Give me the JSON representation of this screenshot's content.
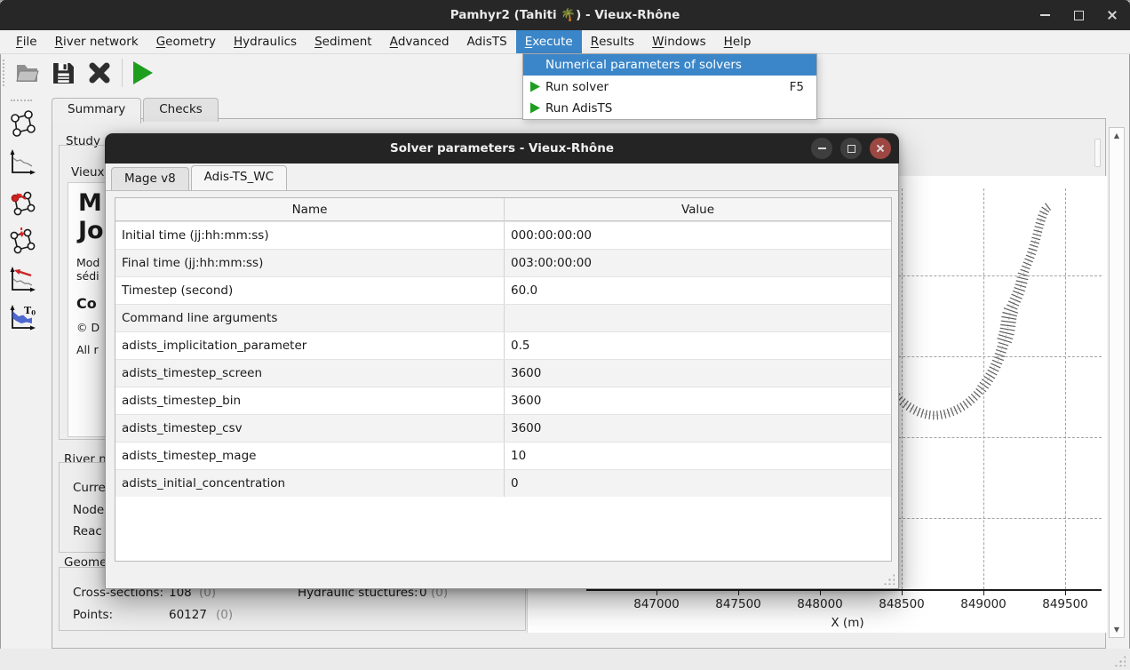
{
  "titlebar": {
    "title": "Pamhyr2 (Tahiti 🌴) - Vieux-Rhône",
    "controls": [
      "minimize-icon",
      "maximize-icon",
      "close-icon"
    ]
  },
  "menubar": {
    "items": [
      {
        "label": "File",
        "u": 0
      },
      {
        "label": "River network",
        "u": 0
      },
      {
        "label": "Geometry",
        "u": 0
      },
      {
        "label": "Hydraulics",
        "u": 0
      },
      {
        "label": "Sediment",
        "u": 0
      },
      {
        "label": "Advanced",
        "u": 0
      },
      {
        "label": "AdisTS",
        "u": null
      },
      {
        "label": "Execute",
        "u": 0,
        "active": true
      },
      {
        "label": "Results",
        "u": 0
      },
      {
        "label": "Windows",
        "u": 0
      },
      {
        "label": "Help",
        "u": 0
      }
    ]
  },
  "toolbar": {
    "icons": [
      "open-folder-icon",
      "save-icon",
      "close-icon",
      "run-icon"
    ]
  },
  "sidebar": {
    "icons": [
      "river-network-icon",
      "longitudinal-profile-icon",
      "boundary-condition-icon",
      "lateral-contribution-icon",
      "initial-condition-icon",
      "t0-initial-state-icon"
    ]
  },
  "tabs": {
    "items": [
      {
        "label": "Summary",
        "active": true
      },
      {
        "label": "Checks",
        "active": false
      }
    ]
  },
  "study": {
    "label": "Study",
    "line1": "Vieux",
    "big1": "M",
    "big2": "Jo",
    "small1": "Mod",
    "small2": "sédi",
    "sub": "Co",
    "copy": "© D",
    "rights": "All r"
  },
  "river_network": {
    "label": "River n",
    "rows": [
      "Curre",
      "Node",
      "Reac"
    ]
  },
  "geometry": {
    "label": "Geome",
    "stats": [
      {
        "name": "Cross-sections:",
        "value": "108",
        "count": "(0)"
      },
      {
        "name": "Hydraulic stuctures:",
        "value": "0",
        "count": "(0)"
      },
      {
        "name": "Points:",
        "value": "60127",
        "count": "(0)"
      }
    ]
  },
  "plot": {
    "xlabel": "X (m)",
    "xticks": [
      "847000",
      "847500",
      "848000",
      "848500",
      "849000",
      "849500"
    ],
    "grid": "dashed"
  },
  "execute_menu": {
    "items": [
      {
        "label": "Numerical parameters of solvers",
        "highlight": true,
        "icon": null,
        "shortcut": ""
      },
      {
        "label": "Run solver",
        "highlight": false,
        "icon": "run-icon",
        "shortcut": "F5"
      },
      {
        "label": "Run AdisTS",
        "highlight": false,
        "icon": "run-icon",
        "shortcut": ""
      }
    ]
  },
  "dialog": {
    "title": "Solver parameters - Vieux-Rhône",
    "controls": [
      "minimize-icon",
      "maximize-icon",
      "close-icon"
    ],
    "tabs": [
      {
        "label": "Mage v8",
        "active": false
      },
      {
        "label": "Adis-TS_WC",
        "active": true
      }
    ],
    "table": {
      "headers": [
        "Name",
        "Value"
      ],
      "rows": [
        [
          "Initial time (jj:hh:mm:ss)",
          "000:00:00:00"
        ],
        [
          "Final time (jj:hh:mm:ss)",
          "003:00:00:00"
        ],
        [
          "Timestep (second)",
          "60.0"
        ],
        [
          "Command line arguments",
          ""
        ],
        [
          "adists_implicitation_parameter",
          "0.5"
        ],
        [
          "adists_timestep_screen",
          "3600"
        ],
        [
          "adists_timestep_bin",
          "3600"
        ],
        [
          "adists_timestep_csv",
          "3600"
        ],
        [
          "adists_timestep_mage",
          "10"
        ],
        [
          "adists_initial_concentration",
          "0"
        ]
      ]
    }
  },
  "colors": {
    "accent": "#3b86c8",
    "run_green": "#1e9e1e",
    "titlebar": "#272727",
    "dialog_close_red": "#9d4742",
    "red_accent": "#cc2222",
    "blue_area": "#3050c8"
  }
}
